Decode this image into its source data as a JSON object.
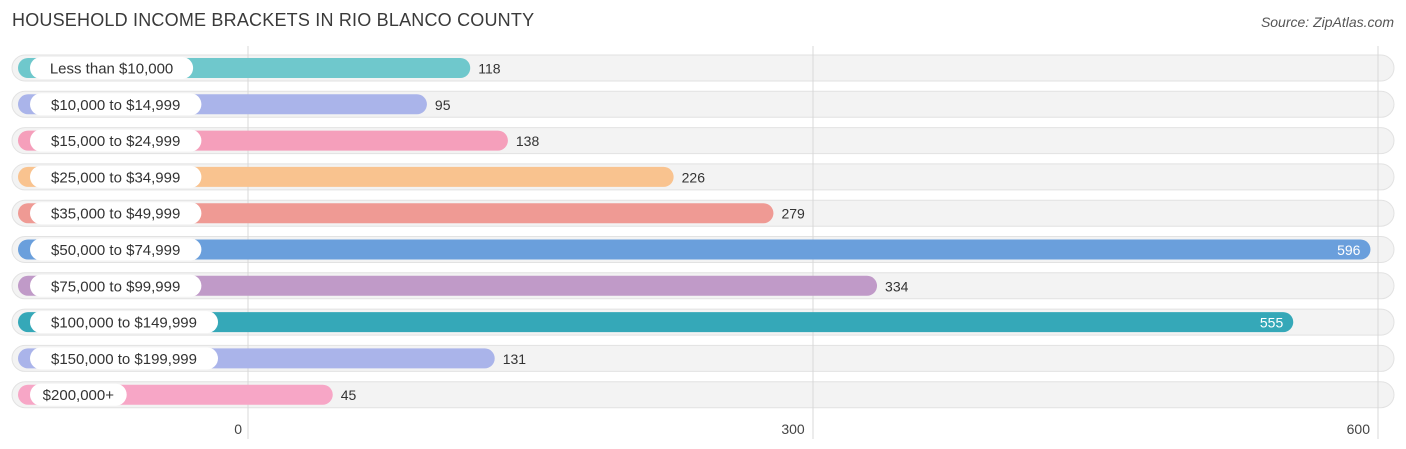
{
  "title": "HOUSEHOLD INCOME BRACKETS IN RIO BLANCO COUNTY",
  "source": "Source: ZipAtlas.com",
  "chart_data": {
    "type": "bar",
    "orientation": "horizontal",
    "title": "HOUSEHOLD INCOME BRACKETS IN RIO BLANCO COUNTY",
    "categories": [
      "Less than $10,000",
      "$10,000 to $14,999",
      "$15,000 to $24,999",
      "$25,000 to $34,999",
      "$35,000 to $49,999",
      "$50,000 to $74,999",
      "$75,000 to $99,999",
      "$100,000 to $149,999",
      "$150,000 to $199,999",
      "$200,000+"
    ],
    "values": [
      118,
      95,
      138,
      226,
      279,
      596,
      334,
      555,
      131,
      45
    ],
    "colors": [
      "#6fc8cc",
      "#aab4ea",
      "#f59fbb",
      "#f9c38f",
      "#ef9a94",
      "#6a9fdc",
      "#c09ac8",
      "#35a8b8",
      "#aab4ea",
      "#f7a6c6"
    ],
    "xlim": [
      0,
      600
    ],
    "xticks": [
      0,
      300,
      600
    ],
    "grid": true
  }
}
